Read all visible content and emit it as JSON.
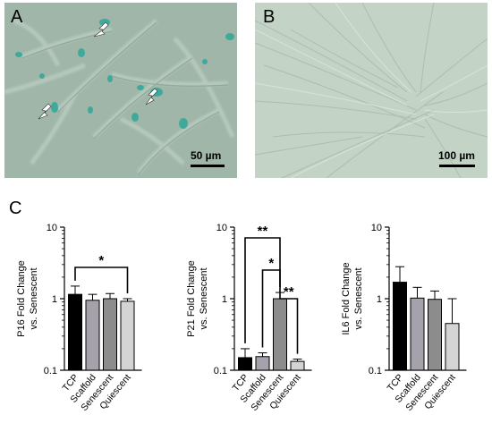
{
  "panels": {
    "a_label": "A",
    "b_label": "B",
    "c_label": "C"
  },
  "micrographs": [
    {
      "panel": "A",
      "scale_bar": "50 µm",
      "stain_color": "#2fa79a",
      "background_color": "#9fb6a9"
    },
    {
      "panel": "B",
      "scale_bar": "100 µm",
      "background_color": "#c3d3c6"
    }
  ],
  "chart_data": [
    {
      "type": "bar",
      "ylabel": "P16 Fold Change vs. Senescent",
      "yscale": "log",
      "ylim": [
        0.1,
        10
      ],
      "ticks": [
        "0.1",
        "1",
        "10"
      ],
      "categories": [
        "TCP",
        "Scaffold",
        "Senescent",
        "Quiescent"
      ],
      "values": [
        1.15,
        0.95,
        1.0,
        0.92
      ],
      "errors": [
        0.35,
        0.2,
        0.18,
        0.08
      ],
      "bar_colors": [
        "#000000",
        "#a6a2ac",
        "#8c8c8c",
        "#d4d4d4"
      ],
      "significance": [
        {
          "from": "TCP",
          "to": "Quiescent",
          "label": "*"
        }
      ]
    },
    {
      "type": "bar",
      "ylabel": "P21 Fold Change vs. Senescent",
      "yscale": "log",
      "ylim": [
        0.1,
        10
      ],
      "ticks": [
        "0.1",
        "1",
        "10"
      ],
      "categories": [
        "TCP",
        "Scaffold",
        "Senescent",
        "Quiescent"
      ],
      "values": [
        0.15,
        0.155,
        1.0,
        0.133
      ],
      "errors": [
        0.05,
        0.02,
        0.22,
        0.01
      ],
      "bar_colors": [
        "#000000",
        "#a6a2ac",
        "#8c8c8c",
        "#d4d4d4"
      ],
      "significance": [
        {
          "from": "TCP",
          "to": "Senescent",
          "label": "**"
        },
        {
          "from": "Scaffold",
          "to": "Senescent",
          "label": "*"
        },
        {
          "from": "Senescent",
          "to": "Quiescent",
          "label": "**"
        }
      ]
    },
    {
      "type": "bar",
      "ylabel": "IL6 Fold Change vs. Senescent",
      "yscale": "log",
      "ylim": [
        0.1,
        10
      ],
      "ticks": [
        "0.1",
        "1",
        "10"
      ],
      "categories": [
        "TCP",
        "Scaffold",
        "Senescent",
        "Quiescent"
      ],
      "values": [
        1.7,
        1.02,
        0.98,
        0.45
      ],
      "errors": [
        1.1,
        0.42,
        0.3,
        0.55
      ],
      "bar_colors": [
        "#000000",
        "#a6a2ac",
        "#8c8c8c",
        "#d4d4d4"
      ],
      "significance": []
    }
  ]
}
